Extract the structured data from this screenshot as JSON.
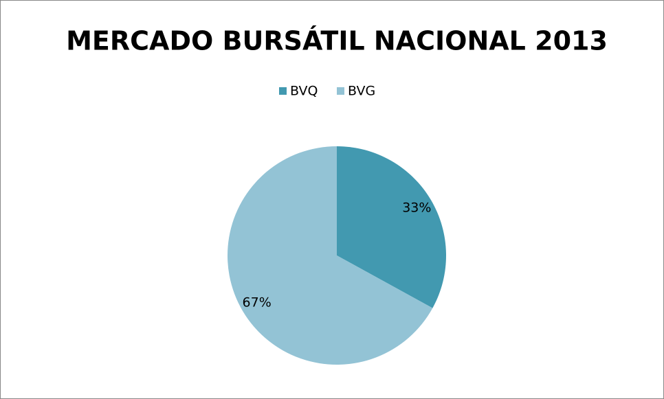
{
  "chart_data": {
    "type": "pie",
    "title": "MERCADO BURSÁTIL NACIONAL 2013",
    "categories": [
      "BVQ",
      "BVG"
    ],
    "values": [
      33,
      67
    ],
    "value_labels": [
      "33%",
      "67%"
    ],
    "colors": [
      "#4299b0",
      "#93c3d5"
    ],
    "legend": "top"
  }
}
